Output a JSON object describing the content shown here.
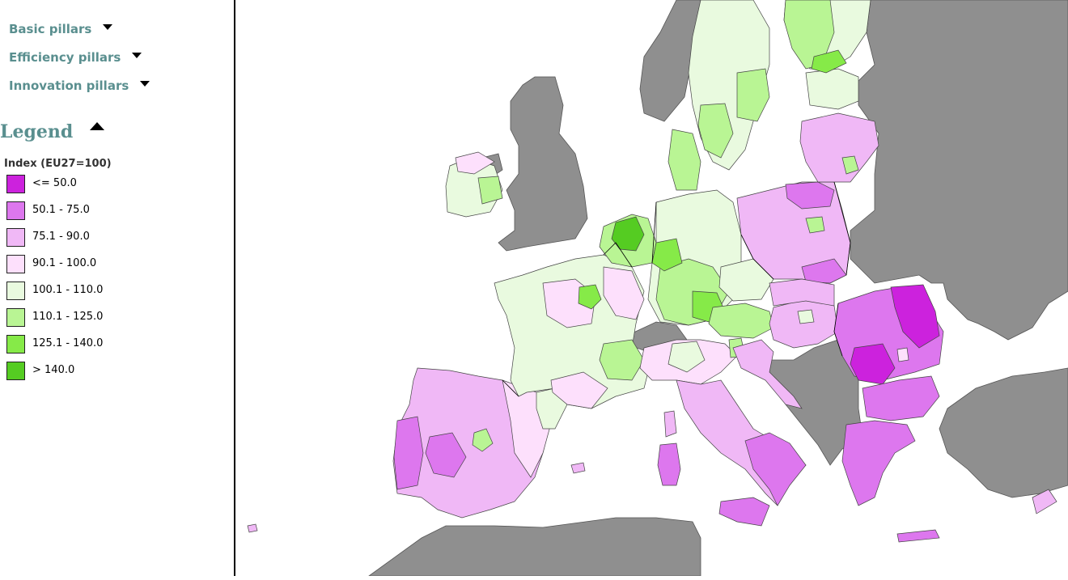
{
  "sidebar": {
    "menu": [
      {
        "label": "Basic pillars"
      },
      {
        "label": "Efficiency pillars"
      },
      {
        "label": "Innovation pillars"
      }
    ],
    "legend": {
      "title": "Legend",
      "subtitle": "Index (EU27=100)",
      "classes": [
        {
          "label": "<= 50.0",
          "color": "#cc22dd"
        },
        {
          "label": "50.1 - 75.0",
          "color": "#dd77ee"
        },
        {
          "label": "75.1 - 90.0",
          "color": "#f0b8f6"
        },
        {
          "label": "90.1 - 100.0",
          "color": "#fde0fc"
        },
        {
          "label": "100.1 - 110.0",
          "color": "#e9fadf"
        },
        {
          "label": "110.1 - 125.0",
          "color": "#b9f594"
        },
        {
          "label": "125.1 - 140.0",
          "color": "#86ea48"
        },
        {
          "label": "> 140.0",
          "color": "#55cc22"
        }
      ]
    }
  },
  "map": {
    "sea_color": "#ffffff",
    "nodata_color": "#8f8f8f"
  }
}
